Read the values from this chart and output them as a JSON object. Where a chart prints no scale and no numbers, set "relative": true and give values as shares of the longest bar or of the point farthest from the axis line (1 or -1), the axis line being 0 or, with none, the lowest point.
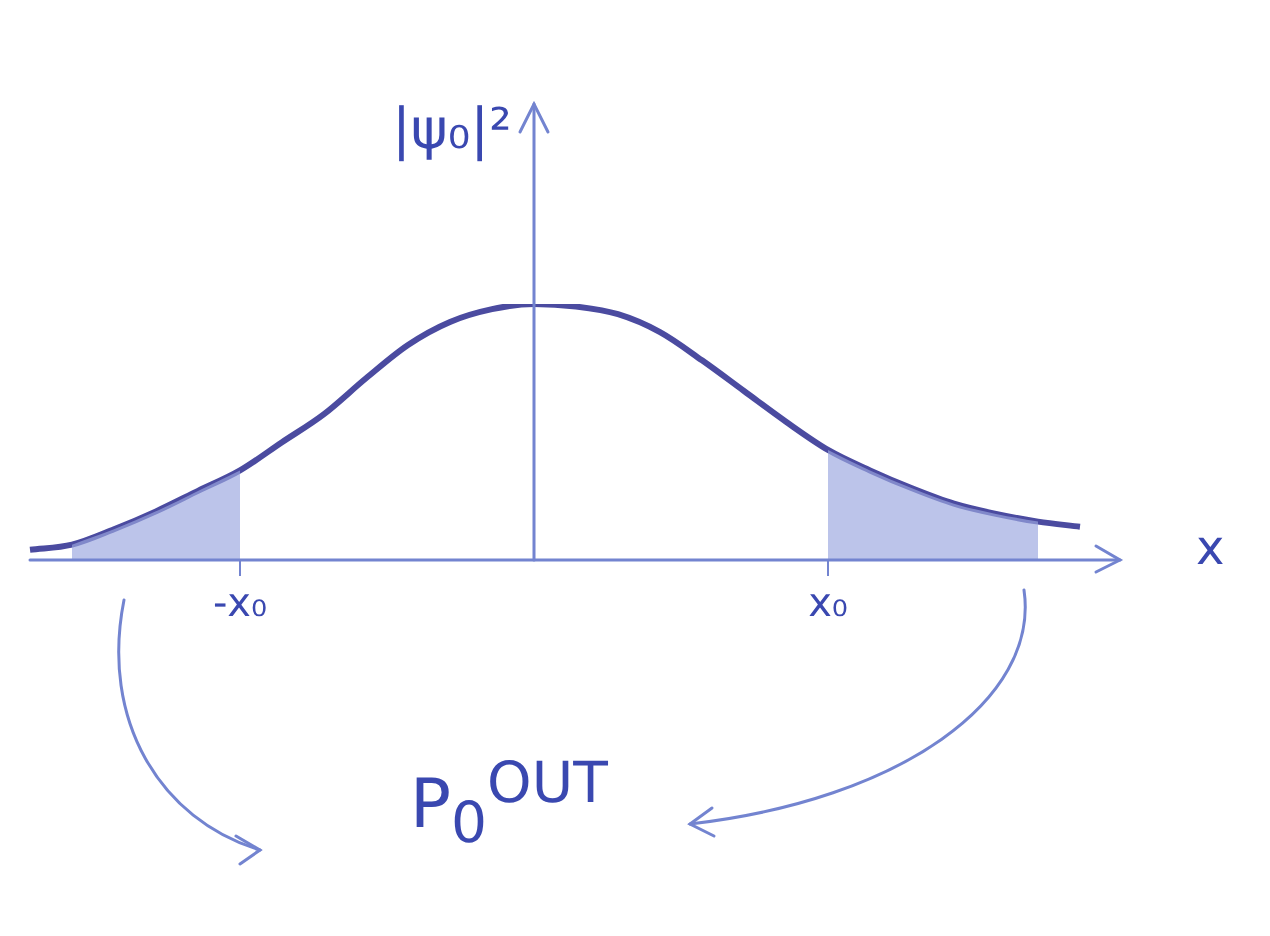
{
  "chart_data": {
    "type": "line",
    "relative": true,
    "ylabel": "|ψ₀|²",
    "xlabel": "x",
    "annotations": [
      "P$_{0}$$^{OUT}$"
    ],
    "grid": false,
    "legend": false,
    "marker": "none",
    "categories": [
      null,
      null,
      null,
      null,
      null,
      "-x₀",
      null,
      null,
      null,
      null,
      null,
      null,
      null,
      null,
      null,
      null,
      null,
      null,
      null,
      "x₀",
      null,
      null,
      null,
      null,
      null,
      null
    ],
    "series": [
      {
        "color": "#4b4ba0",
        "values": [
          0.04,
          0.06,
          0.12,
          0.19,
          0.27,
          0.35,
          0.46,
          0.57,
          0.71,
          0.84,
          0.93,
          0.98,
          1,
          0.99,
          0.96,
          0.89,
          0.78,
          0.66,
          0.54,
          0.43,
          0.35,
          0.28,
          0.22,
          0.18,
          0.15,
          0.13
        ]
      },
      {
        "type": "area",
        "color": "#9aa6e0",
        "values": [
          null,
          0.06,
          0.12,
          0.19,
          0.27,
          0.35,
          null,
          null,
          null,
          null,
          null,
          null,
          null,
          null,
          null,
          null,
          null,
          null,
          null,
          null,
          null,
          null,
          null,
          null,
          null,
          null
        ]
      },
      {
        "type": "area",
        "color": "#9aa6e0",
        "values": [
          null,
          null,
          null,
          null,
          null,
          null,
          null,
          null,
          null,
          null,
          null,
          null,
          null,
          null,
          null,
          null,
          null,
          null,
          null,
          0.43,
          0.35,
          0.28,
          0.22,
          0.18,
          0.15,
          null
        ]
      }
    ]
  }
}
